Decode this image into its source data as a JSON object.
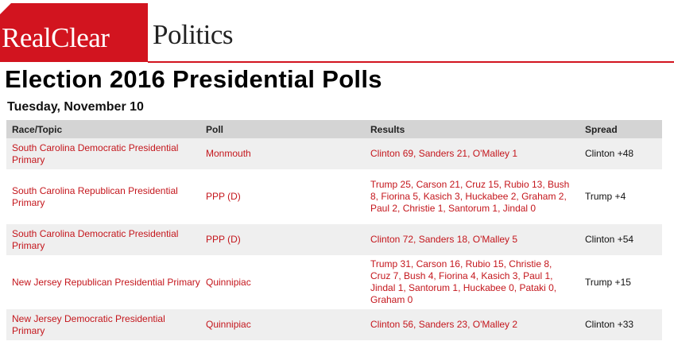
{
  "header": {
    "logo_part1": "RealClear",
    "logo_part2": "Politics",
    "accent_color": "#d2141f"
  },
  "page_title": "Election 2016 Presidential Polls",
  "date": "Tuesday, November 10",
  "table": {
    "columns": [
      "Race/Topic",
      "Poll",
      "Results",
      "Spread"
    ],
    "rows": [
      {
        "race": "South Carolina Democratic Presidential Primary",
        "poll": "Monmouth",
        "results": "Clinton 69, Sanders 21, O'Malley 1",
        "spread": "Clinton +48"
      },
      {
        "race": "South Carolina Republican Presidential Primary",
        "poll": "PPP (D)",
        "results": "Trump 25, Carson 21, Cruz 15, Rubio 13, Bush 8, Fiorina 5, Kasich 3, Huckabee 2, Graham 2, Paul 2, Christie 1, Santorum 1, Jindal 0",
        "spread": "Trump +4"
      },
      {
        "race": "South Carolina Democratic Presidential Primary",
        "poll": "PPP (D)",
        "results": "Clinton 72, Sanders 18, O'Malley 5",
        "spread": "Clinton +54"
      },
      {
        "race": "New Jersey Republican Presidential Primary",
        "poll": "Quinnipiac",
        "results": "Trump 31, Carson 16, Rubio 15, Christie 8, Cruz 7, Bush 4, Fiorina 4, Kasich 3, Paul 1, Jindal 1, Santorum 1, Huckabee 0, Pataki 0, Graham 0",
        "spread": "Trump +15"
      },
      {
        "race": "New Jersey Democratic Presidential Primary",
        "poll": "Quinnipiac",
        "results": "Clinton 56, Sanders 23, O'Malley 2",
        "spread": "Clinton +33"
      }
    ]
  }
}
